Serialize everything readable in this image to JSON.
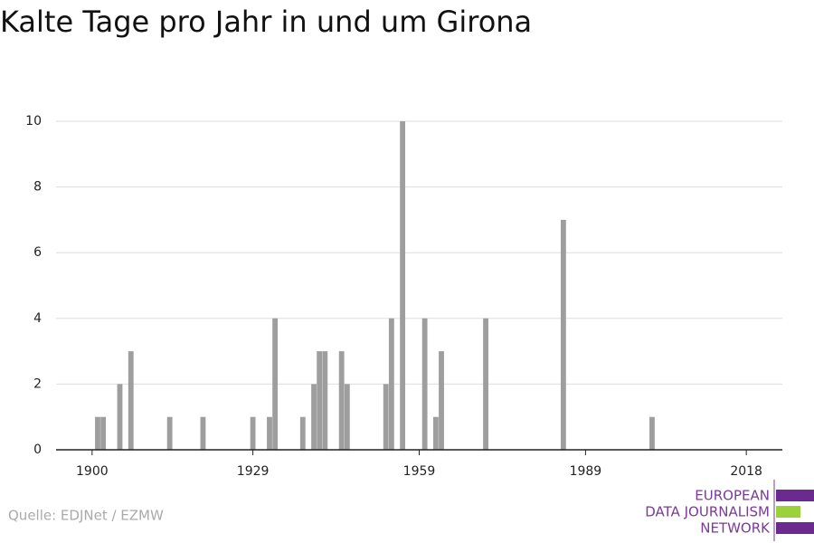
{
  "chart_data": {
    "type": "bar",
    "title": "Kalte Tage pro Jahr in und um Girona",
    "x": [
      1901,
      1902,
      1905,
      1907,
      1914,
      1920,
      1929,
      1932,
      1933,
      1938,
      1940,
      1941,
      1942,
      1945,
      1946,
      1953,
      1954,
      1956,
      1960,
      1962,
      1963,
      1971,
      1985,
      2001
    ],
    "values": [
      1,
      1,
      2,
      3,
      1,
      1,
      1,
      1,
      4,
      1,
      2,
      3,
      3,
      3,
      2,
      2,
      4,
      10,
      4,
      1,
      3,
      4,
      7,
      1
    ],
    "color": "#9e9e9e",
    "xlim": [
      1893.5,
      2024.5
    ],
    "xticks": [
      1900,
      1929,
      1959,
      1989,
      2018
    ],
    "ylim": [
      0,
      10
    ],
    "yticks": [
      0,
      2,
      4,
      6,
      8,
      10
    ],
    "grid": true
  },
  "source": "Quelle: EDJNet / EZMW",
  "logo": [
    "EUROPEAN",
    "DATA JOURNALISM",
    "NETWORK"
  ]
}
